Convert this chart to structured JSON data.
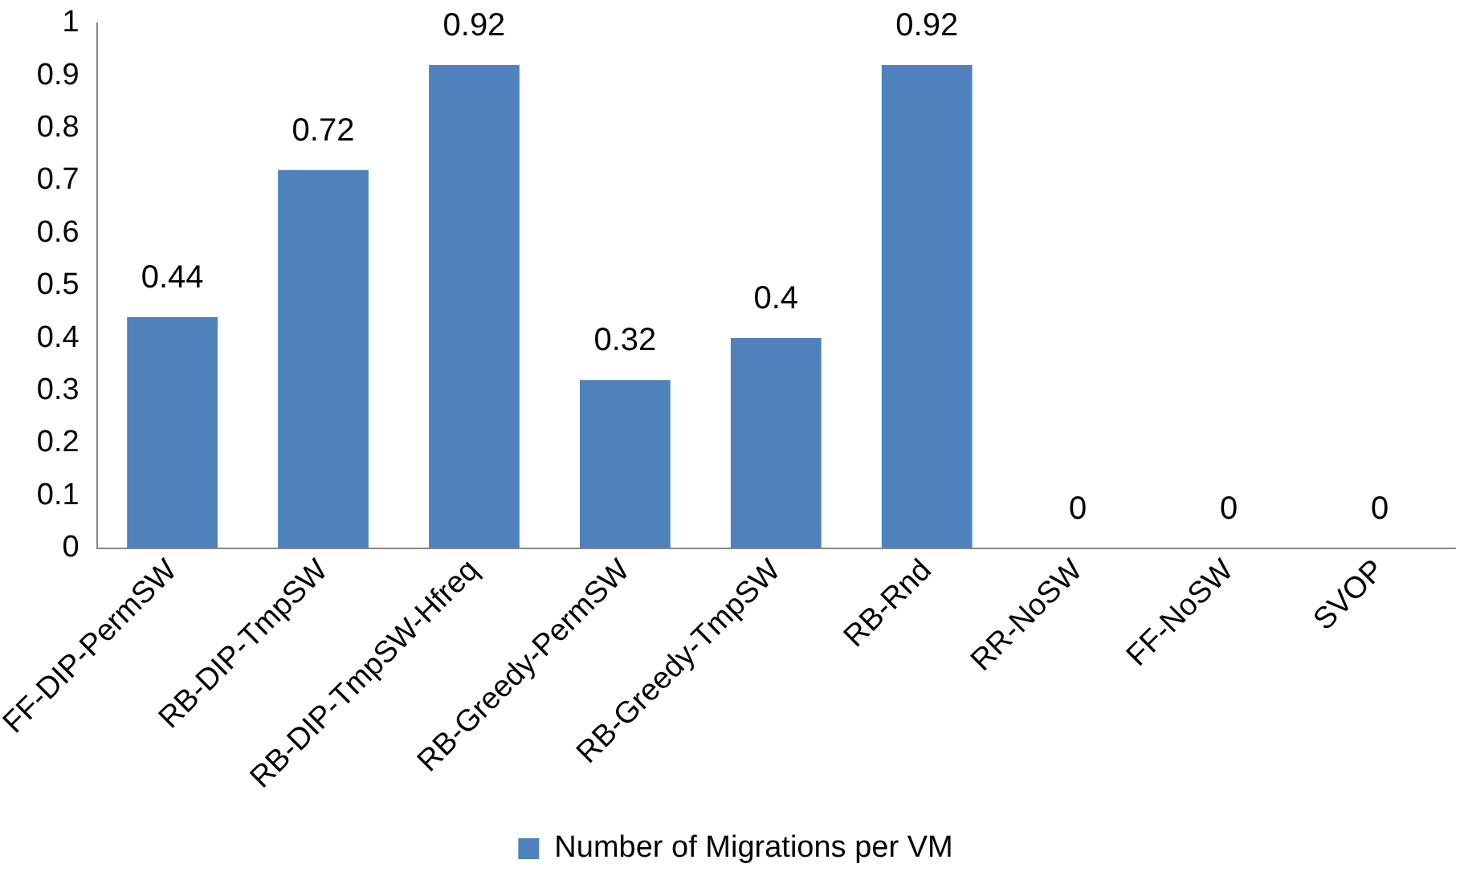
{
  "chart_data": {
    "type": "bar",
    "categories": [
      "FF-DIP-PermSW",
      "RB-DIP-TmpSW",
      "RB-DIP-TmpSW-Hfreq",
      "RB-Greedy-PermSW",
      "RB-Greedy-TmpSW",
      "RB-Rnd",
      "RR-NoSW",
      "FF-NoSW",
      "SVOP"
    ],
    "series": [
      {
        "name": "Number of Migrations per VM",
        "color": "#4f81bd",
        "values": [
          0.44,
          0.72,
          0.92,
          0.32,
          0.4,
          0.92,
          0,
          0,
          0
        ]
      }
    ],
    "ylim": [
      0,
      1
    ],
    "yticks": [
      0,
      0.1,
      0.2,
      0.3,
      0.4,
      0.5,
      0.6,
      0.7,
      0.8,
      0.9,
      1
    ],
    "grid": false,
    "legend": "bottom",
    "data_labels": true
  }
}
